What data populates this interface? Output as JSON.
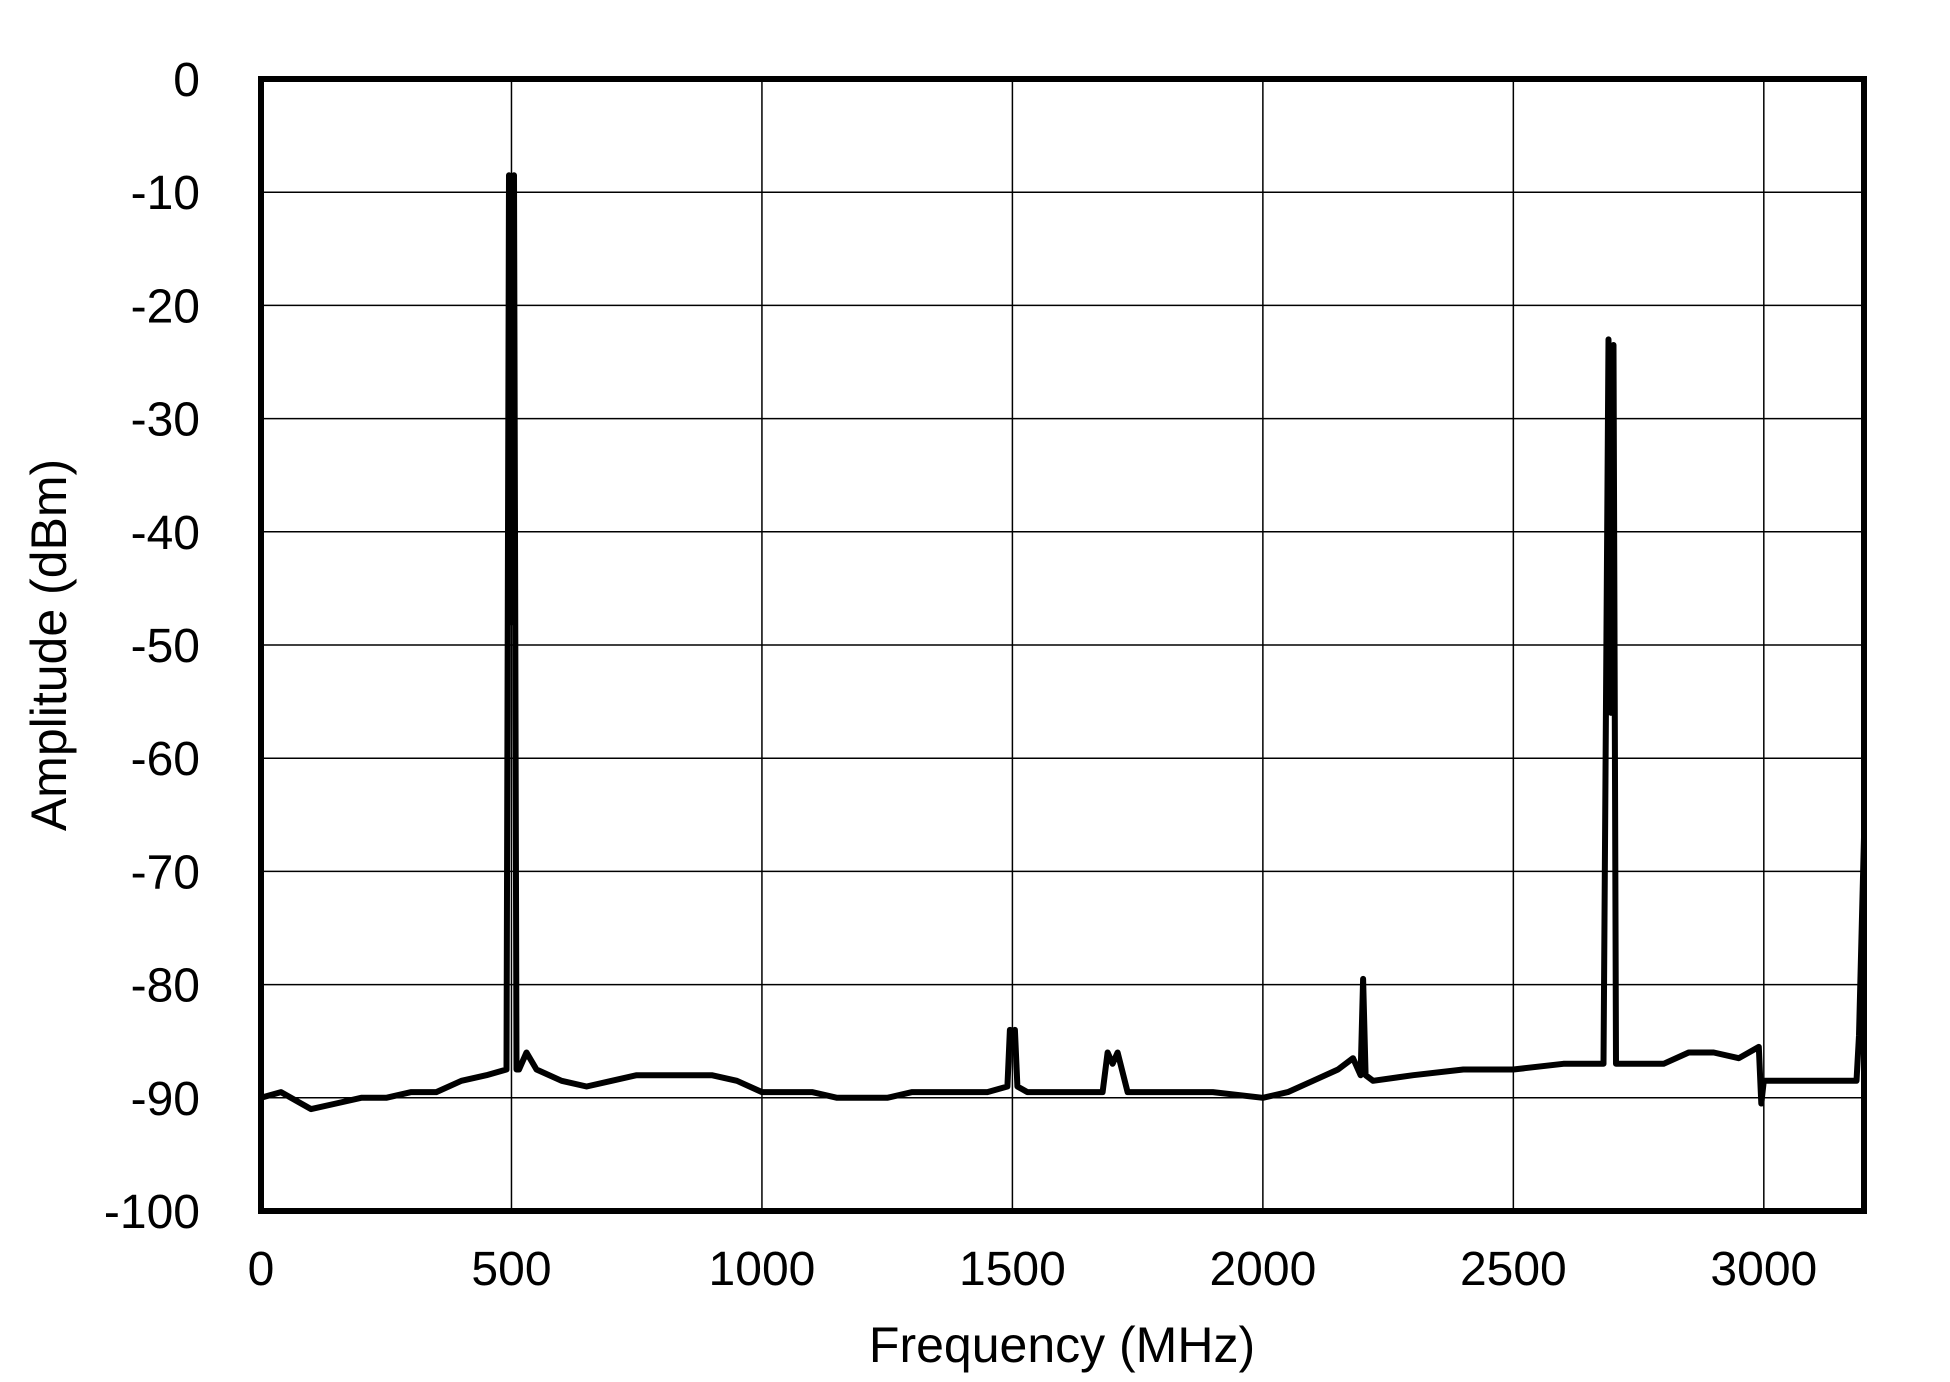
{
  "chart_data": {
    "type": "line",
    "title": "",
    "xlabel": "Frequency (MHz)",
    "ylabel": "Amplitude (dBm)",
    "xlim": [
      0,
      3200
    ],
    "ylim": [
      -100,
      0
    ],
    "x_ticks": [
      0,
      500,
      1000,
      1500,
      2000,
      2500,
      3000
    ],
    "y_ticks": [
      0,
      -10,
      -20,
      -30,
      -40,
      -50,
      -60,
      -70,
      -80,
      -90,
      -100
    ],
    "x_tick_labels": [
      "0",
      "500",
      "1000",
      "1500",
      "2000",
      "2500",
      "3000"
    ],
    "y_tick_labels": [
      "0",
      "-10",
      "-20",
      "-30",
      "-40",
      "-50",
      "-60",
      "-70",
      "-80",
      "-90",
      "-100"
    ],
    "grid": true,
    "line_color": "#000000",
    "series": [
      {
        "x": [
          0,
          40,
          80,
          100,
          150,
          200,
          250,
          300,
          350,
          400,
          450,
          490,
          495,
          500,
          505,
          510,
          515,
          530,
          550,
          600,
          650,
          700,
          750,
          800,
          850,
          900,
          950,
          1000,
          1050,
          1100,
          1150,
          1200,
          1250,
          1300,
          1350,
          1400,
          1450,
          1490,
          1495,
          1500,
          1505,
          1510,
          1530,
          1600,
          1680,
          1690,
          1700,
          1710,
          1730,
          1800,
          1900,
          2000,
          2050,
          2100,
          2150,
          2180,
          2195,
          2200,
          2205,
          2220,
          2300,
          2400,
          2500,
          2600,
          2680,
          2690,
          2695,
          2700,
          2705,
          2710,
          2720,
          2750,
          2800,
          2850,
          2900,
          2950,
          2990,
          2995,
          3000,
          3050,
          3100,
          3150,
          3185,
          3190,
          3200
        ],
        "y": [
          -90,
          -89.5,
          -90.5,
          -91,
          -90.5,
          -90,
          -90,
          -89.5,
          -89.5,
          -88.5,
          -88,
          -87.5,
          -8.5,
          -48,
          -8.5,
          -87.5,
          -87.5,
          -86,
          -87.5,
          -88.5,
          -89,
          -88.5,
          -88,
          -88,
          -88,
          -88,
          -88.5,
          -89.5,
          -89.5,
          -89.5,
          -90,
          -90,
          -90,
          -89.5,
          -89.5,
          -89.5,
          -89.5,
          -89,
          -84,
          -85,
          -84,
          -89,
          -89.5,
          -89.5,
          -89.5,
          -86,
          -87,
          -86,
          -89.5,
          -89.5,
          -89.5,
          -90,
          -89.5,
          -88.5,
          -87.5,
          -86.5,
          -88,
          -79.5,
          -88,
          -88.5,
          -88,
          -87.5,
          -87.5,
          -87,
          -87,
          -23,
          -56,
          -23.5,
          -87,
          -87,
          -87,
          -87,
          -87,
          -86,
          -86,
          -86.5,
          -85.5,
          -90.5,
          -88.5,
          -88.5,
          -88.5,
          -88.5,
          -88.5,
          -84.5,
          -67
        ]
      }
    ]
  }
}
